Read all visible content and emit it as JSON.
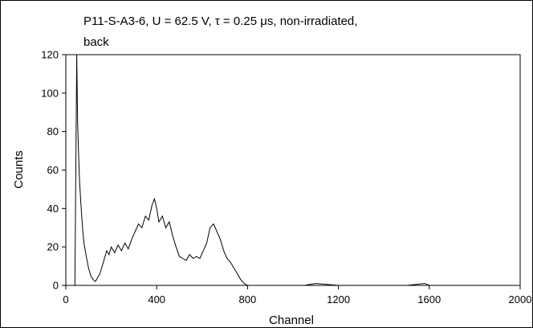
{
  "chart_data": {
    "type": "line",
    "title_line1": "P11-S-A3-6, U = 62.5 V, τ = 0.25 μs, non-irradiated,",
    "title_line2": "back",
    "xlabel": "Channel",
    "ylabel": "Counts",
    "xlim": [
      0,
      2000
    ],
    "ylim": [
      0,
      120
    ],
    "xticks": [
      0,
      400,
      800,
      1200,
      1600,
      2000
    ],
    "yticks": [
      0,
      20,
      40,
      60,
      80,
      100,
      120
    ],
    "grid": false,
    "line_color": "#000000",
    "series": [
      {
        "x": [
          40,
          48,
          52,
          56,
          60,
          65,
          70,
          75,
          80,
          90,
          100,
          110,
          120,
          130,
          140,
          150,
          160,
          170,
          180,
          190,
          200,
          215,
          230,
          245,
          260,
          275,
          290,
          305,
          320,
          335,
          350,
          365,
          380,
          390,
          400,
          410,
          425,
          440,
          455,
          470,
          485,
          500,
          515,
          530,
          545,
          560,
          575,
          590,
          605,
          620,
          635,
          650,
          665,
          680,
          695,
          710,
          725,
          740,
          755,
          770,
          785,
          800,
          850,
          900,
          1000,
          1050,
          1100,
          1200,
          1300,
          1400,
          1500,
          1580,
          1600,
          1700,
          1800,
          1900,
          2000
        ],
        "y": [
          0,
          120,
          85,
          70,
          55,
          45,
          36,
          28,
          22,
          15,
          9,
          5,
          3,
          2,
          4,
          6,
          10,
          14,
          18,
          16,
          20,
          17,
          21,
          18,
          22,
          19,
          24,
          28,
          32,
          30,
          36,
          34,
          42,
          45,
          40,
          33,
          36,
          30,
          33,
          26,
          20,
          15,
          14,
          13,
          16,
          14,
          15,
          14,
          18,
          22,
          30,
          32,
          28,
          24,
          18,
          14,
          12,
          9,
          6,
          3,
          1,
          0,
          0,
          0,
          0,
          0,
          1,
          0,
          0,
          0,
          0,
          1,
          0,
          0,
          0,
          0,
          0
        ]
      }
    ]
  }
}
